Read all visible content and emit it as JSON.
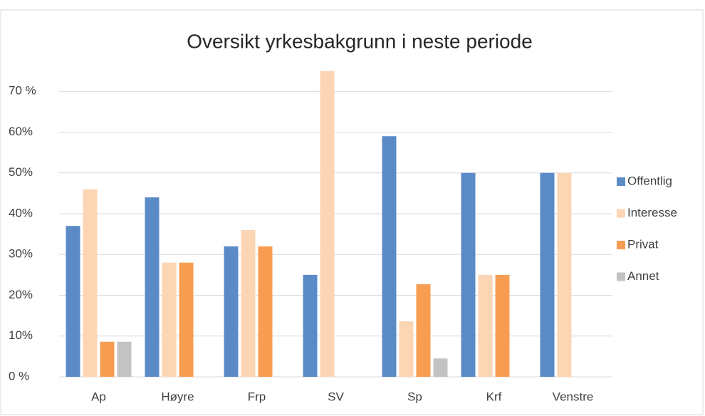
{
  "chart_data": {
    "type": "bar",
    "title": "Oversikt yrkesbakgrunn i neste periode",
    "categories": [
      "Ap",
      "Høyre",
      "Frp",
      "SV",
      "Sp",
      "Krf",
      "Venstre"
    ],
    "series": [
      {
        "name": "Offentlig",
        "color": "#5b8bc7",
        "values": [
          37,
          44,
          32,
          25,
          59,
          50,
          50
        ]
      },
      {
        "name": "Interesse",
        "color": "#fcd5b5",
        "values": [
          46,
          28,
          36,
          75,
          13.6,
          25,
          50
        ]
      },
      {
        "name": "Privat",
        "color": "#f79d52",
        "values": [
          8.6,
          28,
          32,
          0,
          22.7,
          25,
          0
        ]
      },
      {
        "name": "Annet",
        "color": "#c3c3c3",
        "values": [
          8.6,
          0,
          0,
          0,
          4.5,
          0,
          0
        ]
      }
    ],
    "ylim": [
      0,
      80
    ],
    "yticks": [
      {
        "value": 0,
        "label": "0 %"
      },
      {
        "value": 10,
        "label": "10%"
      },
      {
        "value": 20,
        "label": "20%"
      },
      {
        "value": 30,
        "label": "30%"
      },
      {
        "value": 40,
        "label": "40%"
      },
      {
        "value": 50,
        "label": "50%"
      },
      {
        "value": 60,
        "label": "60%"
      },
      {
        "value": 70,
        "label": "70 %"
      }
    ],
    "grid": true,
    "legend": "right"
  }
}
